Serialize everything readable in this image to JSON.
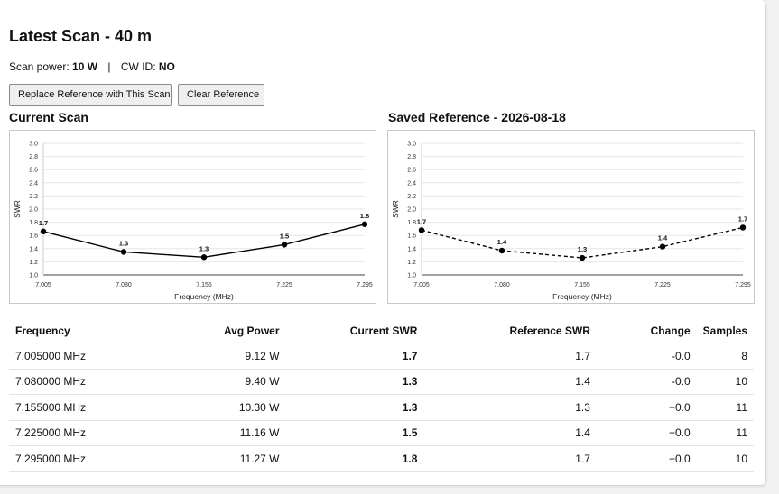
{
  "page": {
    "title": "Latest Scan - 40 m",
    "scan_power_label": "Scan power:",
    "scan_power_value": "10 W",
    "separator": "|",
    "cw_id_label": "CW ID:",
    "cw_id_value": "NO"
  },
  "buttons": {
    "replace_label": "Replace Reference with This Scan",
    "clear_label": "Clear Reference"
  },
  "charts": {
    "current_title": "Current Scan",
    "reference_title": "Saved Reference - 2026-08-18"
  },
  "chart_data": [
    {
      "type": "line",
      "title": "Current Scan",
      "xlabel": "Frequency (MHz)",
      "ylabel": "SWR",
      "x": [
        "7.005",
        "7.080",
        "7.155",
        "7.225",
        "7.295"
      ],
      "values": [
        1.66,
        1.35,
        1.27,
        1.46,
        1.77
      ],
      "labels": [
        "1.7",
        "1.3",
        "1.3",
        "1.5",
        "1.8"
      ],
      "yticks": [
        "1.0",
        "1.2",
        "1.4",
        "1.6",
        "1.8",
        "2.0",
        "2.2",
        "2.4",
        "2.6",
        "2.8",
        "3.0"
      ],
      "ylim": [
        1.0,
        3.0
      ],
      "line_style": "solid",
      "grid": true,
      "color": "#000000"
    },
    {
      "type": "line",
      "title": "Saved Reference - 2026-08-18",
      "xlabel": "Frequency (MHz)",
      "ylabel": "SWR",
      "x": [
        "7.005",
        "7.080",
        "7.155",
        "7.225",
        "7.295"
      ],
      "values": [
        1.68,
        1.37,
        1.26,
        1.43,
        1.72
      ],
      "labels": [
        "1.7",
        "1.4",
        "1.3",
        "1.4",
        "1.7"
      ],
      "yticks": [
        "1.0",
        "1.2",
        "1.4",
        "1.6",
        "1.8",
        "2.0",
        "2.2",
        "2.4",
        "2.6",
        "2.8",
        "3.0"
      ],
      "ylim": [
        1.0,
        3.0
      ],
      "line_style": "dashed",
      "grid": true,
      "color": "#000000"
    }
  ],
  "table": {
    "headers": [
      "Frequency",
      "Avg Power",
      "Current SWR",
      "Reference SWR",
      "Change",
      "Samples"
    ],
    "rows": [
      [
        "7.005000 MHz",
        "9.12 W",
        "1.7",
        "1.7",
        "-0.0",
        "8"
      ],
      [
        "7.080000 MHz",
        "9.40 W",
        "1.3",
        "1.4",
        "-0.0",
        "10"
      ],
      [
        "7.155000 MHz",
        "10.30 W",
        "1.3",
        "1.3",
        "+0.0",
        "11"
      ],
      [
        "7.225000 MHz",
        "11.16 W",
        "1.5",
        "1.4",
        "+0.0",
        "11"
      ],
      [
        "7.295000 MHz",
        "11.27 W",
        "1.8",
        "1.7",
        "+0.0",
        "10"
      ]
    ]
  }
}
